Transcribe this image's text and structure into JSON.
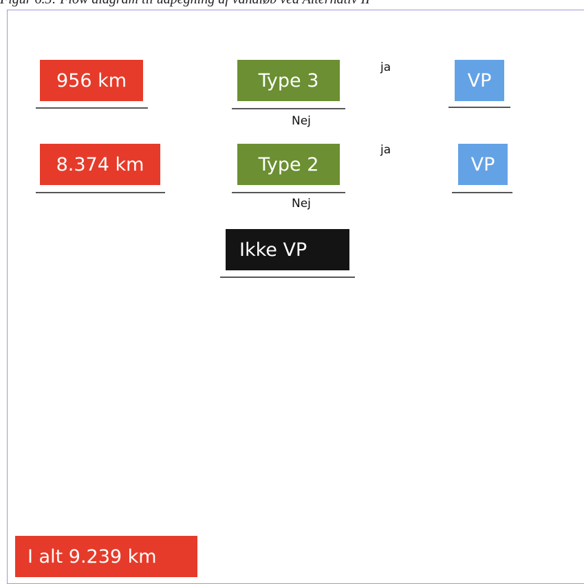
{
  "caption": "Figur 6.3: Flow diagram til udpegning af vandløb ved Alternativ II",
  "nodes": [
    {
      "label": "956 km"
    },
    {
      "label": "Type 3"
    },
    {
      "label": "VP"
    },
    {
      "label": "8.374 km"
    },
    {
      "label": "Type 2"
    },
    {
      "label": "VP"
    },
    {
      "label": "Ikke VP"
    },
    {
      "label": "I alt 9.239 km"
    }
  ],
  "edge_labels": [
    "ja",
    "Nej",
    "ja",
    "Nej"
  ]
}
